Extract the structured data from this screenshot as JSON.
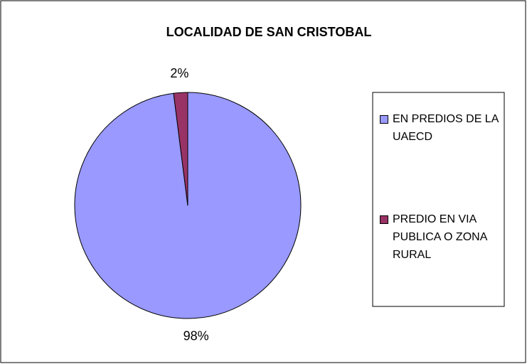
{
  "chart_data": {
    "type": "pie",
    "title": "LOCALIDAD DE SAN CRISTOBAL",
    "categories": [
      "EN PREDIOS DE LA UAECD",
      "PREDIO EN VIA PUBLICA O ZONA RURAL"
    ],
    "values": [
      98,
      2
    ],
    "value_labels": [
      "98%",
      "2%"
    ],
    "colors": [
      "#9999ff",
      "#993366"
    ],
    "legend": "right"
  }
}
